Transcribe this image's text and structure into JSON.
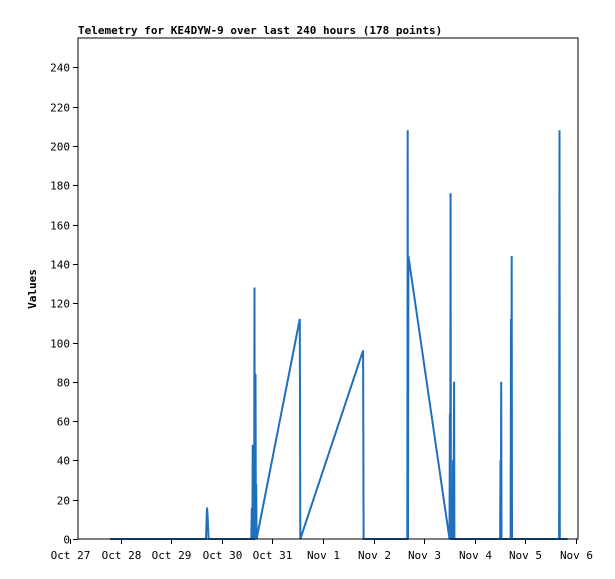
{
  "chart_data": {
    "type": "line",
    "title": "Telemetry for KE4DYW-9 over last 240 hours (178 points)",
    "xlabel": "",
    "ylabel": "Values",
    "x_axis_type": "date",
    "xlim": [
      "Oct 27",
      "Nov 6"
    ],
    "ylim": [
      0,
      255
    ],
    "x_ticks": [
      "Oct 27",
      "Oct 28",
      "Oct 29",
      "Oct 30",
      "Oct 31",
      "Nov 1",
      "Nov 2",
      "Nov 3",
      "Nov 4",
      "Nov 5",
      "Nov 6"
    ],
    "y_ticks": [
      0,
      20,
      40,
      60,
      80,
      100,
      120,
      140,
      160,
      180,
      200,
      220,
      240
    ],
    "grid": false,
    "legend": "none",
    "line_color": "#1f6fbf",
    "series": [
      {
        "points": [
          [
            "Oct 27 19:00",
            0
          ],
          [
            "Oct 29 16:30",
            0
          ],
          [
            "Oct 29 16:45",
            8
          ],
          [
            "Oct 29 17:00",
            16
          ],
          [
            "Oct 29 17:15",
            12
          ],
          [
            "Oct 29 17:45",
            0
          ],
          [
            "Oct 30 14:00",
            0
          ],
          [
            "Oct 30 14:15",
            16
          ],
          [
            "Oct 30 14:30",
            0
          ],
          [
            "Oct 30 14:40",
            48
          ],
          [
            "Oct 30 14:50",
            0
          ],
          [
            "Oct 30 15:20",
            0
          ],
          [
            "Oct 30 15:30",
            128
          ],
          [
            "Oct 30 15:40",
            0
          ],
          [
            "Oct 30 16:00",
            84
          ],
          [
            "Oct 30 16:10",
            0
          ],
          [
            "Oct 30 16:20",
            28
          ],
          [
            "Oct 30 16:30",
            0
          ],
          [
            "Oct 31 13:00",
            112
          ],
          [
            "Oct 31 13:15",
            0
          ],
          [
            "Nov 1 19:00",
            96
          ],
          [
            "Nov 1 19:15",
            0
          ],
          [
            "Nov 2 16:00",
            0
          ],
          [
            "Nov 2 16:10",
            208
          ],
          [
            "Nov 2 16:20",
            0
          ],
          [
            "Nov 2 16:30",
            144
          ],
          [
            "Nov 3 12:00",
            0
          ],
          [
            "Nov 3 12:10",
            64
          ],
          [
            "Nov 3 12:20",
            0
          ],
          [
            "Nov 3 12:30",
            176
          ],
          [
            "Nov 3 12:40",
            0
          ],
          [
            "Nov 3 13:30",
            0
          ],
          [
            "Nov 3 13:40",
            40
          ],
          [
            "Nov 3 13:50",
            0
          ],
          [
            "Nov 3 14:10",
            80
          ],
          [
            "Nov 3 14:20",
            0
          ],
          [
            "Nov 4 12:00",
            0
          ],
          [
            "Nov 4 12:10",
            40
          ],
          [
            "Nov 4 12:20",
            0
          ],
          [
            "Nov 4 12:30",
            80
          ],
          [
            "Nov 4 12:40",
            0
          ],
          [
            "Nov 4 17:00",
            0
          ],
          [
            "Nov 4 17:10",
            112
          ],
          [
            "Nov 4 17:20",
            0
          ],
          [
            "Nov 4 17:30",
            144
          ],
          [
            "Nov 4 17:40",
            0
          ],
          [
            "Nov 5 16:00",
            0
          ],
          [
            "Nov 5 16:10",
            208
          ],
          [
            "Nov 5 16:20",
            0
          ],
          [
            "Nov 5 20:00",
            0
          ]
        ]
      }
    ]
  }
}
